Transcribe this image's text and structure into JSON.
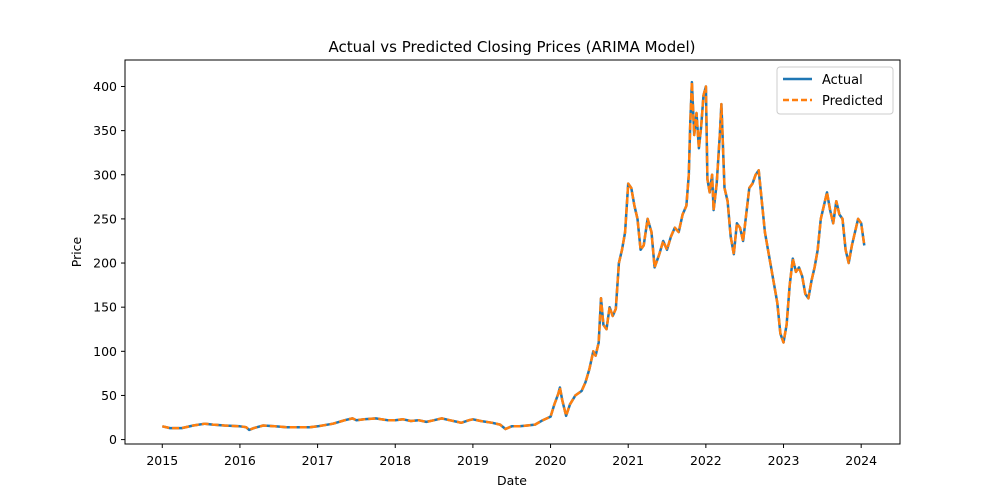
{
  "chart_data": {
    "type": "line",
    "title": "Actual vs Predicted Closing Prices (ARIMA Model)",
    "xlabel": "Date",
    "ylabel": "Price",
    "xlim": [
      2014.52,
      2024.5
    ],
    "ylim": [
      -5,
      430
    ],
    "x_ticks": [
      "2015",
      "2016",
      "2017",
      "2018",
      "2019",
      "2020",
      "2021",
      "2022",
      "2023",
      "2024"
    ],
    "y_ticks": [
      0,
      50,
      100,
      150,
      200,
      250,
      300,
      350,
      400
    ],
    "grid": false,
    "legend_position": "top-right",
    "series": [
      {
        "name": "Actual",
        "color": "#1f77b4",
        "style": "solid"
      },
      {
        "name": "Predicted",
        "color": "#ff7f0e",
        "style": "dashed"
      }
    ],
    "points": [
      [
        2015.0,
        15
      ],
      [
        2015.1,
        13
      ],
      [
        2015.25,
        13
      ],
      [
        2015.4,
        16
      ],
      [
        2015.55,
        18
      ],
      [
        2015.65,
        17
      ],
      [
        2015.8,
        16
      ],
      [
        2016.0,
        15
      ],
      [
        2016.08,
        14
      ],
      [
        2016.12,
        11
      ],
      [
        2016.18,
        13
      ],
      [
        2016.3,
        16
      ],
      [
        2016.45,
        15
      ],
      [
        2016.6,
        14
      ],
      [
        2016.75,
        14
      ],
      [
        2016.9,
        14
      ],
      [
        2017.0,
        15
      ],
      [
        2017.2,
        18
      ],
      [
        2017.35,
        22
      ],
      [
        2017.45,
        24
      ],
      [
        2017.5,
        22
      ],
      [
        2017.6,
        23
      ],
      [
        2017.75,
        24
      ],
      [
        2017.9,
        22
      ],
      [
        2018.0,
        22
      ],
      [
        2018.1,
        23
      ],
      [
        2018.2,
        21
      ],
      [
        2018.3,
        22
      ],
      [
        2018.4,
        20
      ],
      [
        2018.5,
        22
      ],
      [
        2018.6,
        24
      ],
      [
        2018.7,
        22
      ],
      [
        2018.8,
        20
      ],
      [
        2018.85,
        19
      ],
      [
        2018.95,
        22
      ],
      [
        2019.0,
        23
      ],
      [
        2019.1,
        21
      ],
      [
        2019.25,
        19
      ],
      [
        2019.35,
        17
      ],
      [
        2019.42,
        12
      ],
      [
        2019.5,
        15
      ],
      [
        2019.6,
        15
      ],
      [
        2019.7,
        16
      ],
      [
        2019.8,
        17
      ],
      [
        2019.9,
        22
      ],
      [
        2020.0,
        26
      ],
      [
        2020.05,
        40
      ],
      [
        2020.1,
        52
      ],
      [
        2020.12,
        59
      ],
      [
        2020.15,
        45
      ],
      [
        2020.2,
        27
      ],
      [
        2020.25,
        40
      ],
      [
        2020.32,
        50
      ],
      [
        2020.4,
        55
      ],
      [
        2020.45,
        65
      ],
      [
        2020.5,
        80
      ],
      [
        2020.55,
        100
      ],
      [
        2020.58,
        95
      ],
      [
        2020.62,
        110
      ],
      [
        2020.65,
        160
      ],
      [
        2020.68,
        130
      ],
      [
        2020.72,
        125
      ],
      [
        2020.76,
        150
      ],
      [
        2020.8,
        140
      ],
      [
        2020.84,
        148
      ],
      [
        2020.88,
        200
      ],
      [
        2020.92,
        215
      ],
      [
        2020.96,
        235
      ],
      [
        2021.0,
        290
      ],
      [
        2021.04,
        285
      ],
      [
        2021.08,
        265
      ],
      [
        2021.12,
        250
      ],
      [
        2021.16,
        215
      ],
      [
        2021.2,
        220
      ],
      [
        2021.25,
        250
      ],
      [
        2021.3,
        235
      ],
      [
        2021.34,
        195
      ],
      [
        2021.4,
        210
      ],
      [
        2021.45,
        225
      ],
      [
        2021.5,
        215
      ],
      [
        2021.55,
        230
      ],
      [
        2021.6,
        240
      ],
      [
        2021.65,
        235
      ],
      [
        2021.7,
        255
      ],
      [
        2021.75,
        265
      ],
      [
        2021.78,
        300
      ],
      [
        2021.8,
        360
      ],
      [
        2021.82,
        405
      ],
      [
        2021.85,
        345
      ],
      [
        2021.88,
        370
      ],
      [
        2021.91,
        330
      ],
      [
        2021.94,
        355
      ],
      [
        2021.97,
        390
      ],
      [
        2022.0,
        400
      ],
      [
        2022.02,
        295
      ],
      [
        2022.05,
        280
      ],
      [
        2022.08,
        300
      ],
      [
        2022.1,
        260
      ],
      [
        2022.14,
        290
      ],
      [
        2022.18,
        345
      ],
      [
        2022.2,
        380
      ],
      [
        2022.24,
        285
      ],
      [
        2022.28,
        270
      ],
      [
        2022.32,
        230
      ],
      [
        2022.36,
        210
      ],
      [
        2022.4,
        245
      ],
      [
        2022.44,
        240
      ],
      [
        2022.48,
        225
      ],
      [
        2022.52,
        255
      ],
      [
        2022.56,
        285
      ],
      [
        2022.6,
        290
      ],
      [
        2022.64,
        300
      ],
      [
        2022.68,
        305
      ],
      [
        2022.72,
        270
      ],
      [
        2022.76,
        235
      ],
      [
        2022.8,
        215
      ],
      [
        2022.84,
        195
      ],
      [
        2022.88,
        175
      ],
      [
        2022.92,
        155
      ],
      [
        2022.96,
        120
      ],
      [
        2023.0,
        110
      ],
      [
        2023.04,
        130
      ],
      [
        2023.08,
        175
      ],
      [
        2023.12,
        205
      ],
      [
        2023.16,
        190
      ],
      [
        2023.2,
        195
      ],
      [
        2023.24,
        185
      ],
      [
        2023.28,
        165
      ],
      [
        2023.32,
        160
      ],
      [
        2023.36,
        180
      ],
      [
        2023.4,
        195
      ],
      [
        2023.44,
        215
      ],
      [
        2023.48,
        250
      ],
      [
        2023.52,
        265
      ],
      [
        2023.56,
        280
      ],
      [
        2023.6,
        260
      ],
      [
        2023.64,
        245
      ],
      [
        2023.68,
        270
      ],
      [
        2023.72,
        255
      ],
      [
        2023.76,
        250
      ],
      [
        2023.8,
        215
      ],
      [
        2023.84,
        200
      ],
      [
        2023.88,
        220
      ],
      [
        2023.92,
        235
      ],
      [
        2023.96,
        250
      ],
      [
        2024.0,
        245
      ],
      [
        2024.04,
        220
      ]
    ]
  }
}
